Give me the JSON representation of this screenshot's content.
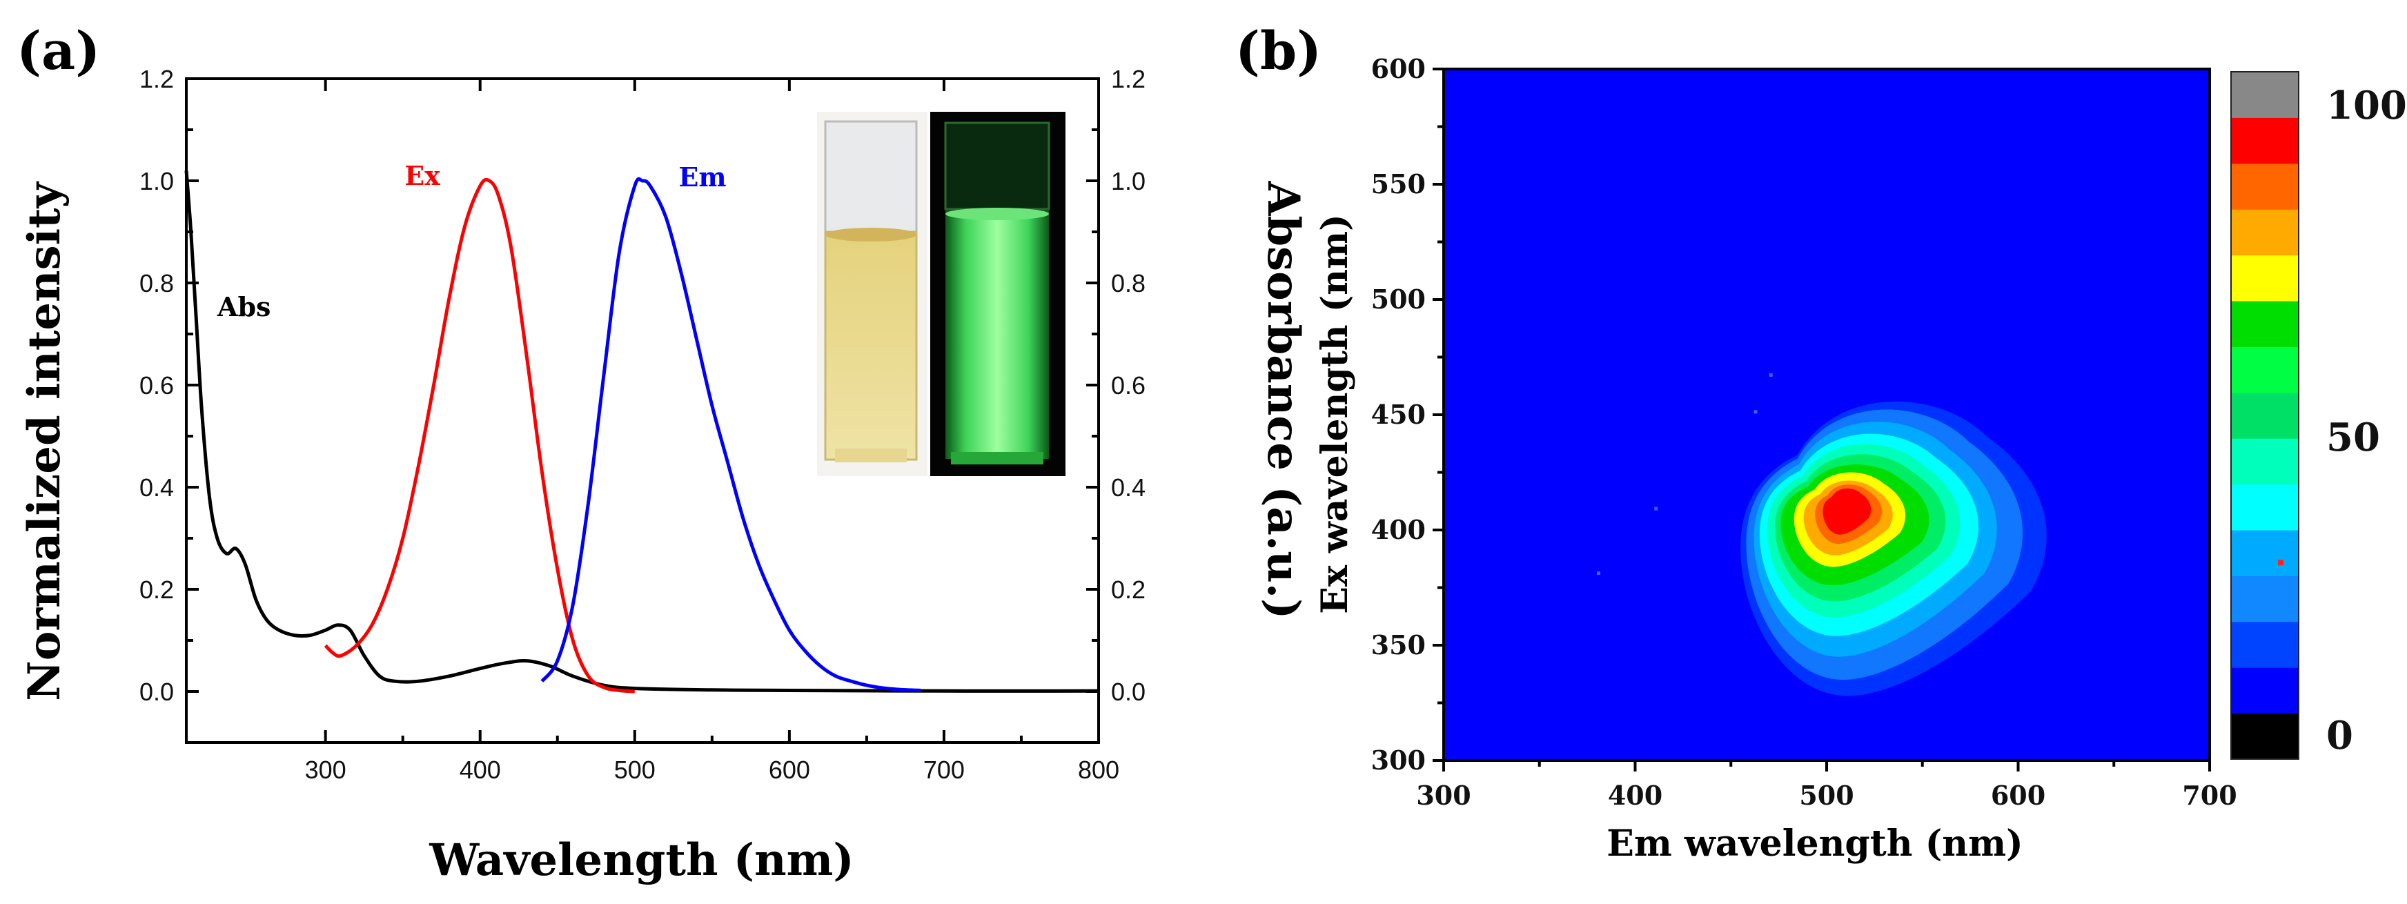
{
  "chart_data": [
    {
      "panel": "(a)",
      "type": "line",
      "xlabel": "Wavelength (nm)",
      "ylabel_left": "Normalized intensity",
      "ylabel_right": "Absorbance (a.u.)",
      "xlim": [
        210,
        800
      ],
      "ylim": [
        -0.1,
        1.2
      ],
      "x_ticks": [
        300,
        400,
        500,
        600,
        700,
        800
      ],
      "y_ticks": [
        0.0,
        0.2,
        0.4,
        0.6,
        0.8,
        1.0,
        1.2
      ],
      "y_tick_labels": [
        "0.0",
        "0.2",
        "0.4",
        "0.6",
        "0.8",
        "1.0",
        "1.2"
      ],
      "series": [
        {
          "name": "Abs",
          "label": "Abs",
          "color": "#000000",
          "x": [
            210,
            213,
            216,
            220,
            225,
            230,
            236,
            242,
            248,
            255,
            262,
            270,
            280,
            290,
            300,
            308,
            316,
            325,
            335,
            345,
            360,
            380,
            400,
            415,
            430,
            445,
            460,
            480,
            500,
            550,
            600,
            700,
            800
          ],
          "y": [
            1.02,
            0.9,
            0.75,
            0.55,
            0.38,
            0.3,
            0.27,
            0.28,
            0.25,
            0.18,
            0.14,
            0.12,
            0.11,
            0.11,
            0.12,
            0.13,
            0.12,
            0.07,
            0.03,
            0.02,
            0.02,
            0.03,
            0.045,
            0.055,
            0.06,
            0.05,
            0.03,
            0.012,
            0.006,
            0.003,
            0.002,
            0.001,
            0.001
          ]
        },
        {
          "name": "Ex",
          "label": "Ex",
          "color": "#ff0000",
          "x": [
            300,
            305,
            310,
            320,
            330,
            340,
            350,
            360,
            370,
            380,
            390,
            400,
            406,
            412,
            420,
            430,
            440,
            450,
            460,
            470,
            480,
            490,
            500
          ],
          "y": [
            0.09,
            0.075,
            0.07,
            0.09,
            0.13,
            0.2,
            0.3,
            0.44,
            0.6,
            0.77,
            0.91,
            0.99,
            1.0,
            0.97,
            0.87,
            0.66,
            0.43,
            0.24,
            0.1,
            0.03,
            0.008,
            0.002,
            0.0
          ]
        },
        {
          "name": "Em",
          "label": "Em",
          "color": "#0000ff",
          "x": [
            440,
            450,
            460,
            470,
            480,
            490,
            500,
            505,
            510,
            520,
            530,
            540,
            550,
            560,
            570,
            580,
            590,
            600,
            610,
            620,
            630,
            640,
            650,
            660,
            670,
            685
          ],
          "y": [
            0.02,
            0.06,
            0.17,
            0.37,
            0.62,
            0.86,
            0.99,
            1.0,
            0.99,
            0.93,
            0.82,
            0.69,
            0.56,
            0.45,
            0.34,
            0.25,
            0.18,
            0.12,
            0.08,
            0.05,
            0.03,
            0.02,
            0.012,
            0.007,
            0.004,
            0.002
          ]
        }
      ]
    },
    {
      "panel": "(b)",
      "type": "heatmap",
      "xlabel": "Em wavelength (nm)",
      "ylabel": "Ex wavelength (nm)",
      "xlim": [
        300,
        700
      ],
      "ylim": [
        300,
        600
      ],
      "x_ticks": [
        300,
        400,
        500,
        600,
        700
      ],
      "y_ticks": [
        300,
        350,
        400,
        450,
        500,
        550,
        600
      ],
      "colorbar_ticks": [
        "0",
        "50",
        "100"
      ],
      "colorbar_colors": [
        "#000000",
        "#0000ff",
        "#0044ff",
        "#1188ff",
        "#00aaff",
        "#00ffff",
        "#00ffbb",
        "#00e066",
        "#00ff44",
        "#00dd00",
        "#ffff00",
        "#ffaa00",
        "#ff6600",
        "#ff0000",
        "#888888"
      ],
      "background_color": "#0000ff",
      "peak": {
        "em": 510,
        "ex": 410,
        "value": 100
      },
      "contour_levels": [
        {
          "level": 8,
          "color": "#0033ff",
          "em_range": [
            455,
            620
          ],
          "ex_range": [
            328,
            462
          ]
        },
        {
          "level": 20,
          "color": "#1177ff",
          "em_range": [
            458,
            607
          ],
          "ex_range": [
            335,
            458
          ]
        },
        {
          "level": 30,
          "color": "#00aaff",
          "em_range": [
            462,
            593
          ],
          "ex_range": [
            345,
            452
          ]
        },
        {
          "level": 40,
          "color": "#00ffff",
          "em_range": [
            465,
            583
          ],
          "ex_range": [
            354,
            446
          ]
        },
        {
          "level": 50,
          "color": "#00ffbb",
          "em_range": [
            469,
            573
          ],
          "ex_range": [
            362,
            441
          ]
        },
        {
          "level": 60,
          "color": "#00ee66",
          "em_range": [
            473,
            565
          ],
          "ex_range": [
            369,
            436
          ]
        },
        {
          "level": 70,
          "color": "#00dd00",
          "em_range": [
            476,
            556
          ],
          "ex_range": [
            376,
            431
          ]
        },
        {
          "level": 78,
          "color": "#ffff00",
          "em_range": [
            483,
            543
          ],
          "ex_range": [
            384,
            427
          ]
        },
        {
          "level": 85,
          "color": "#ffaa00",
          "em_range": [
            488,
            536
          ],
          "ex_range": [
            389,
            423
          ]
        },
        {
          "level": 92,
          "color": "#ff6600",
          "em_range": [
            494,
            530
          ],
          "ex_range": [
            394,
            421
          ]
        },
        {
          "level": 97,
          "color": "#ff0000",
          "em_range": [
            498,
            524
          ],
          "ex_range": [
            398,
            419
          ]
        }
      ]
    }
  ]
}
